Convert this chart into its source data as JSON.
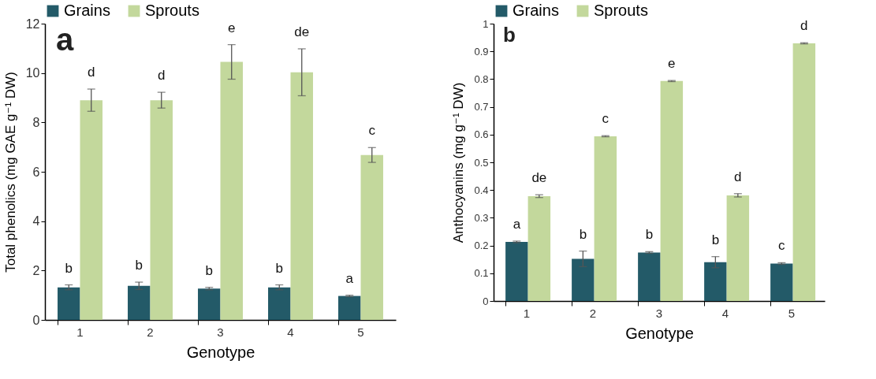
{
  "chart_data": [
    {
      "type": "bar",
      "xlabel": "Genotype",
      "ylabel": "Total phenolics (mg GAE g⁻¹ DW)",
      "categories": [
        "1",
        "2",
        "3",
        "4",
        "5"
      ],
      "series": [
        {
          "name": "Grains",
          "color": "#235a68",
          "values": [
            1.32,
            1.38,
            1.27,
            1.32,
            0.97
          ],
          "errors": [
            0.1,
            0.15,
            0.05,
            0.1,
            0.03
          ]
        },
        {
          "name": "Sprouts",
          "color": "#c3d89c",
          "values": [
            8.9,
            8.9,
            10.45,
            10.03,
            6.68
          ],
          "errors": [
            0.45,
            0.32,
            0.7,
            0.95,
            0.3
          ]
        }
      ],
      "ylim": [
        0,
        12
      ],
      "yticks": [
        0,
        2,
        4,
        6,
        8,
        10,
        12
      ],
      "legend": "top",
      "grid": false,
      "annotations": [
        "a",
        {
          "text": "b",
          "x": "1",
          "y": 1.32
        },
        {
          "text": "b",
          "x": "2",
          "y": 1.38
        },
        {
          "text": "b",
          "x": "3",
          "y": 1.27
        },
        {
          "text": "b",
          "x": "4",
          "y": 1.32
        },
        {
          "text": "a",
          "x": "5",
          "y": 0.97
        },
        {
          "text": "d",
          "x": "1",
          "y": 8.9
        },
        {
          "text": "d",
          "x": "2",
          "y": 8.9
        },
        {
          "text": "e",
          "x": "3",
          "y": 10.45
        },
        {
          "text": "de",
          "x": "4",
          "y": 10.03
        },
        {
          "text": "c",
          "x": "5",
          "y": 6.68
        }
      ]
    },
    {
      "type": "bar",
      "xlabel": "Genotype",
      "ylabel": "Anthocyanins (mg g⁻¹ DW)",
      "categories": [
        "1",
        "2",
        "3",
        "4",
        "5"
      ],
      "series": [
        {
          "name": "Grains",
          "color": "#235a68",
          "values": [
            0.213,
            0.152,
            0.175,
            0.14,
            0.135
          ],
          "errors": [
            0.003,
            0.028,
            0.003,
            0.02,
            0.003
          ]
        },
        {
          "name": "Sprouts",
          "color": "#c3d89c",
          "values": [
            0.378,
            0.594,
            0.793,
            0.381,
            0.929
          ],
          "errors": [
            0.005,
            0.002,
            0.002,
            0.006,
            0.002
          ]
        }
      ],
      "ylim": [
        0,
        1
      ],
      "yticks": [
        0,
        0.1,
        0.2,
        0.3,
        0.4,
        0.5,
        0.6,
        0.7,
        0.8,
        0.9,
        1
      ],
      "legend": "top",
      "grid": false,
      "annotations": [
        "b",
        {
          "text": "a",
          "x": "1",
          "y": 0.213
        },
        {
          "text": "b",
          "x": "2",
          "y": 0.152
        },
        {
          "text": "b",
          "x": "3",
          "y": 0.175
        },
        {
          "text": "b",
          "x": "4",
          "y": 0.14
        },
        {
          "text": "c",
          "x": "5",
          "y": 0.135
        },
        {
          "text": "de",
          "x": "1",
          "y": 0.378
        },
        {
          "text": "c",
          "x": "2",
          "y": 0.594
        },
        {
          "text": "e",
          "x": "3",
          "y": 0.793
        },
        {
          "text": "d",
          "x": "4",
          "y": 0.381
        },
        {
          "text": "d",
          "x": "5",
          "y": 0.929
        }
      ]
    }
  ]
}
